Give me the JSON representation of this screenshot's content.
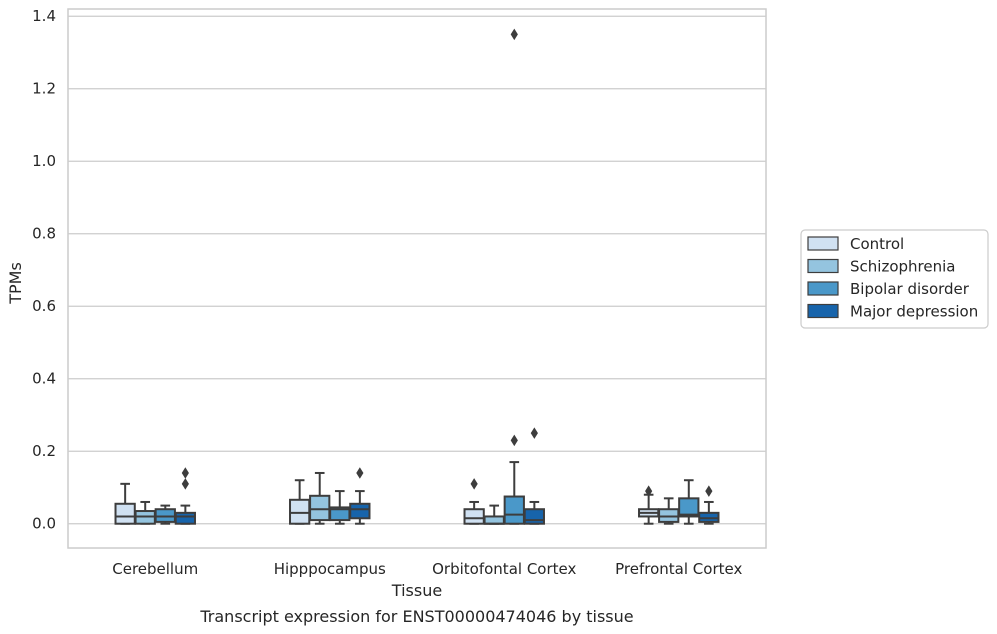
{
  "chart_data": {
    "type": "box",
    "xlabel": "Tissue",
    "ylabel": "TPMs",
    "caption": "Transcript expression for ENST00000474046 by tissue",
    "ylim": [
      -0.067,
      1.42
    ],
    "yticks": [
      0.0,
      0.2,
      0.4,
      0.6,
      0.8,
      1.0,
      1.2,
      1.4
    ],
    "ytick_labels": [
      "0.0",
      "0.2",
      "0.4",
      "0.6",
      "0.8",
      "1.0",
      "1.2",
      "1.4"
    ],
    "grid": "horizontal",
    "legend_position": "right",
    "categories": [
      "Cerebellum",
      "Hipppocampus",
      "Orbitofontal Cortex",
      "Prefrontal Cortex"
    ],
    "series": [
      {
        "name": "Control",
        "color": "#d0e1f2",
        "boxes": [
          {
            "whislo": 0.0,
            "q1": 0.0,
            "med": 0.02,
            "q3": 0.055,
            "whishi": 0.11,
            "fliers": []
          },
          {
            "whislo": 0.0,
            "q1": 0.0,
            "med": 0.03,
            "q3": 0.066,
            "whishi": 0.12,
            "fliers": []
          },
          {
            "whislo": 0.0,
            "q1": 0.0,
            "med": 0.015,
            "q3": 0.04,
            "whishi": 0.06,
            "fliers": [
              0.11
            ]
          },
          {
            "whislo": 0.0,
            "q1": 0.02,
            "med": 0.03,
            "q3": 0.04,
            "whishi": 0.08,
            "fliers": [
              0.09
            ]
          }
        ]
      },
      {
        "name": "Schizophrenia",
        "color": "#94c4df",
        "boxes": [
          {
            "whislo": 0.0,
            "q1": 0.0,
            "med": 0.02,
            "q3": 0.035,
            "whishi": 0.06,
            "fliers": []
          },
          {
            "whislo": 0.0,
            "q1": 0.01,
            "med": 0.04,
            "q3": 0.077,
            "whishi": 0.14,
            "fliers": []
          },
          {
            "whislo": 0.0,
            "q1": 0.0,
            "med": 0.0,
            "q3": 0.02,
            "whishi": 0.05,
            "fliers": []
          },
          {
            "whislo": 0.0,
            "q1": 0.005,
            "med": 0.02,
            "q3": 0.04,
            "whishi": 0.07,
            "fliers": []
          }
        ]
      },
      {
        "name": "Bipolar disorder",
        "color": "#4a98c9",
        "boxes": [
          {
            "whislo": 0.0,
            "q1": 0.005,
            "med": 0.02,
            "q3": 0.04,
            "whishi": 0.05,
            "fliers": []
          },
          {
            "whislo": 0.0,
            "q1": 0.01,
            "med": 0.04,
            "q3": 0.045,
            "whishi": 0.09,
            "fliers": []
          },
          {
            "whislo": 0.0,
            "q1": 0.0,
            "med": 0.025,
            "q3": 0.075,
            "whishi": 0.17,
            "fliers": [
              0.23,
              1.35
            ]
          },
          {
            "whislo": 0.0,
            "q1": 0.02,
            "med": 0.025,
            "q3": 0.07,
            "whishi": 0.12,
            "fliers": []
          }
        ]
      },
      {
        "name": "Major depression",
        "color": "#1764ab",
        "boxes": [
          {
            "whislo": 0.0,
            "q1": 0.0,
            "med": 0.02,
            "q3": 0.03,
            "whishi": 0.05,
            "fliers": [
              0.11,
              0.14
            ]
          },
          {
            "whislo": 0.0,
            "q1": 0.015,
            "med": 0.04,
            "q3": 0.055,
            "whishi": 0.09,
            "fliers": [
              0.14
            ]
          },
          {
            "whislo": 0.0,
            "q1": 0.0,
            "med": 0.01,
            "q3": 0.04,
            "whishi": 0.06,
            "fliers": [
              0.25
            ]
          },
          {
            "whislo": 0.0,
            "q1": 0.005,
            "med": 0.015,
            "q3": 0.03,
            "whishi": 0.06,
            "fliers": [
              0.09
            ]
          }
        ]
      }
    ]
  }
}
